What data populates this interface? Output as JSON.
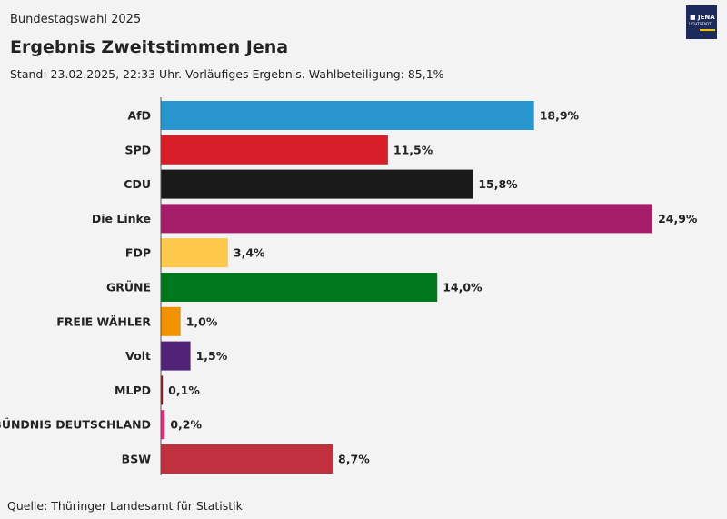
{
  "header": {
    "supertitle": "Bundestagswahl 2025",
    "title": "Ergebnis Zweitstimmen Jena",
    "subtitle": "Stand: 23.02.2025, 22:33 Uhr. Vorläufiges Ergebnis. Wahlbeteiligung: 85,1%"
  },
  "logo": {
    "text": "JENA",
    "subtext": "LICHTSTADT."
  },
  "source": "Quelle: Thüringer Landesamt für Statistik",
  "chart_data": {
    "type": "bar",
    "orientation": "horizontal",
    "title": "Ergebnis Zweitstimmen Jena",
    "unit": "%",
    "categories": [
      "AfD",
      "SPD",
      "CDU",
      "Die Linke",
      "FDP",
      "GRÜNE",
      "FREIE WÄHLER",
      "Volt",
      "MLPD",
      "BÜNDNIS DEUTSCHLAND",
      "BSW"
    ],
    "values": [
      18.9,
      11.5,
      15.8,
      24.9,
      3.4,
      14.0,
      1.0,
      1.5,
      0.1,
      0.2,
      8.7
    ],
    "labels": [
      "18,9%",
      "11,5%",
      "15,8%",
      "24,9%",
      "3,4%",
      "14,0%",
      "1,0%",
      "1,5%",
      "0,1%",
      "0,2%",
      "8,7%"
    ],
    "colors": [
      "#2a96d0",
      "#d81e29",
      "#1a1a1a",
      "#a51e6a",
      "#fec84a",
      "#00781e",
      "#f39200",
      "#502379",
      "#a00c15",
      "#e5297f",
      "#c0303f"
    ],
    "grid": false
  }
}
